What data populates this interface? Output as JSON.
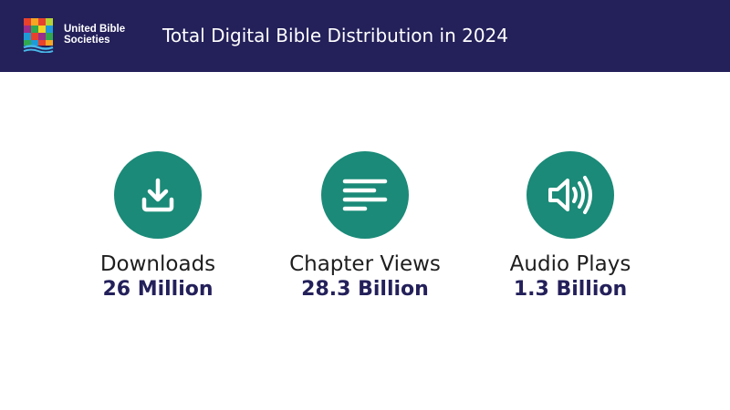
{
  "header": {
    "logo_text_line1": "United Bible",
    "logo_text_line2": "Societies",
    "title": "Total Digital Bible Distribution in 2024",
    "background": "#23205a"
  },
  "stats": [
    {
      "icon": "download-icon",
      "label": "Downloads",
      "value": "26 Million"
    },
    {
      "icon": "text-lines-icon",
      "label": "Chapter Views",
      "value": "28.3 Billion"
    },
    {
      "icon": "speaker-icon",
      "label": "Audio Plays",
      "value": "1.3 Billion"
    }
  ],
  "colors": {
    "accent": "#1b8a78",
    "value_text": "#23205a",
    "label_text": "#1e1e1e"
  }
}
